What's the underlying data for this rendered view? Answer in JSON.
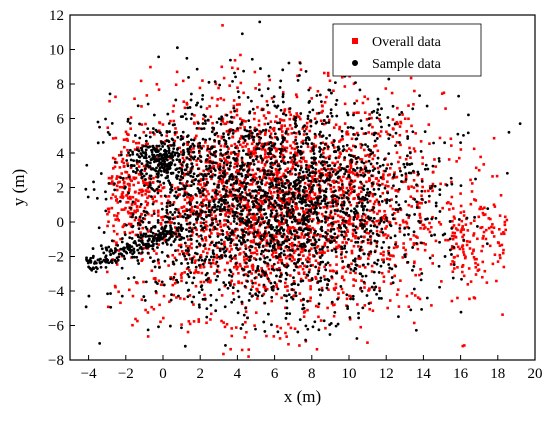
{
  "chart_data": {
    "type": "scatter",
    "title": "",
    "xlabel": "x (m)",
    "ylabel": "y (m)",
    "xlim": [
      -5,
      20
    ],
    "ylim": [
      -8,
      12
    ],
    "xticks": [
      -4,
      -2,
      0,
      2,
      4,
      6,
      8,
      10,
      12,
      14,
      16,
      18,
      20
    ],
    "yticks": [
      -8,
      -6,
      -4,
      -2,
      0,
      2,
      4,
      6,
      8,
      10,
      12
    ],
    "grid": false,
    "legend_position": "top-right",
    "series": [
      {
        "name": "Overall data",
        "color": "#ff0000",
        "marker": "square",
        "cloud": {
          "x_range": [
            -3,
            18.5
          ],
          "y_range": [
            -7.8,
            11.4
          ],
          "centroid": [
            6,
            1
          ],
          "spread": [
            4.5,
            3.2
          ],
          "approx_points": 2600
        },
        "notable_points": [
          {
            "x": 3.2,
            "y": 11.4
          },
          {
            "x": 18.4,
            "y": 0.3
          },
          {
            "x": 18.3,
            "y": -0.6
          },
          {
            "x": -2.2,
            "y": 3.5
          },
          {
            "x": -1.5,
            "y": 4.2
          },
          {
            "x": -2.5,
            "y": -1.2
          },
          {
            "x": 4.6,
            "y": -7.8
          },
          {
            "x": 14.5,
            "y": -2.4
          },
          {
            "x": 17.0,
            "y": 3.0
          },
          {
            "x": 12.6,
            "y": 6.6
          }
        ]
      },
      {
        "name": "Sample data",
        "color": "#000000",
        "marker": "circle",
        "cloud": {
          "x_range": [
            -4.2,
            19.2
          ],
          "y_range": [
            -7.2,
            11.6
          ],
          "centroid": [
            6,
            1
          ],
          "spread": [
            4.2,
            3.0
          ],
          "approx_points": 2400
        },
        "notable_points": [
          {
            "x": 5.2,
            "y": 11.6
          },
          {
            "x": 19.2,
            "y": 5.7
          },
          {
            "x": 18.6,
            "y": 5.2
          },
          {
            "x": -4.0,
            "y": -2.6
          },
          {
            "x": -3.5,
            "y": -2.2
          },
          {
            "x": -2.8,
            "y": -1.6
          },
          {
            "x": 0.0,
            "y": 4.6
          },
          {
            "x": 1.2,
            "y": -7.2
          },
          {
            "x": 11.0,
            "y": 8.6
          },
          {
            "x": 16.0,
            "y": 4.6
          }
        ]
      }
    ]
  }
}
